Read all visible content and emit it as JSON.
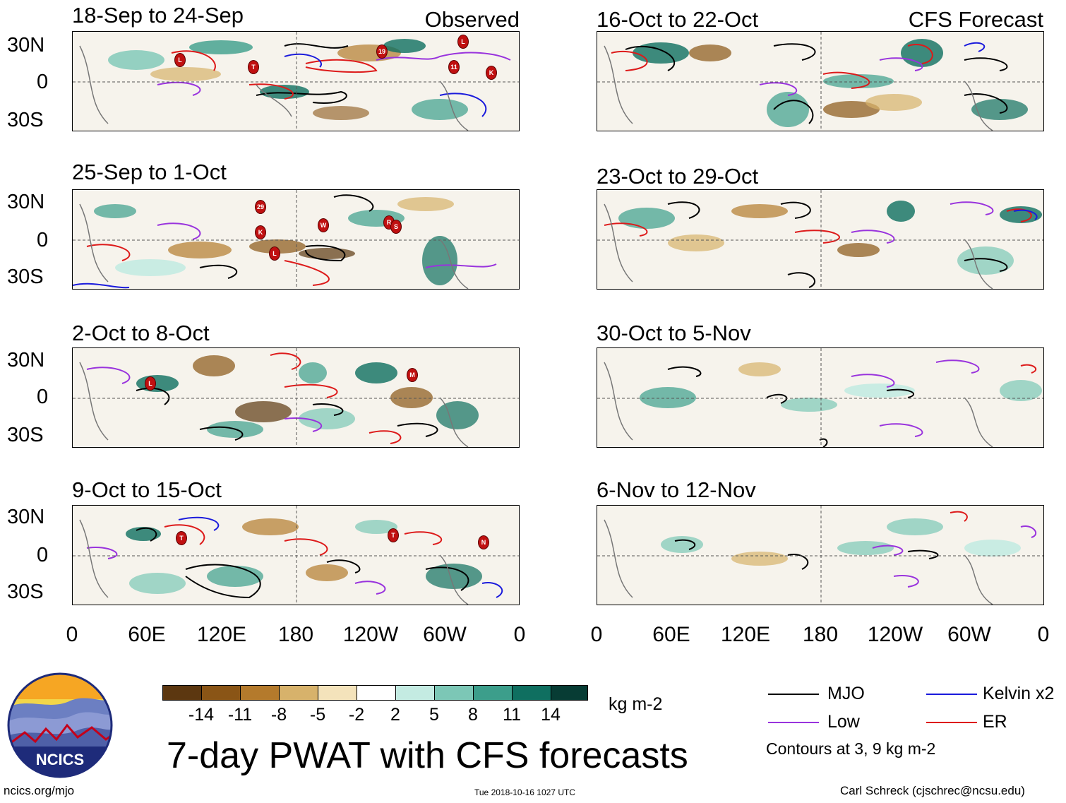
{
  "left_column_header": "Observed",
  "right_column_header": "CFS Forecast",
  "left_panels": [
    {
      "period": "18-Sep to 24-Sep",
      "storms": [
        "L",
        "T",
        "19",
        "L",
        "11",
        "K"
      ]
    },
    {
      "period": "25-Sep to 1-Oct",
      "storms": [
        "29",
        "K",
        "L",
        "W",
        "R",
        "S"
      ]
    },
    {
      "period": "2-Oct to 8-Oct",
      "storms": [
        "L",
        "M"
      ]
    },
    {
      "period": "9-Oct to 15-Oct",
      "storms": [
        "T",
        "T",
        "N"
      ]
    }
  ],
  "right_panels": [
    {
      "period": "16-Oct to 22-Oct"
    },
    {
      "period": "23-Oct to 29-Oct"
    },
    {
      "period": "30-Oct to 5-Nov"
    },
    {
      "period": "6-Nov to 12-Nov"
    }
  ],
  "lat_labels": [
    "30N",
    "0",
    "30S"
  ],
  "lon_labels": [
    "0",
    "60E",
    "120E",
    "180",
    "120W",
    "60W",
    "0"
  ],
  "colorbar": {
    "unit": "kg m-2",
    "ticks": [
      "-14",
      "-11",
      "-8",
      "-5",
      "-2",
      "2",
      "5",
      "8",
      "11",
      "14"
    ],
    "colors": [
      "#5c3710",
      "#8a5516",
      "#b47a2c",
      "#d7b26b",
      "#f4e3bb",
      "#ffffff",
      "#c4ebe2",
      "#7cc7b6",
      "#3c9e8b",
      "#0f6f60",
      "#073c34"
    ]
  },
  "legend": {
    "mjo": {
      "label": "MJO",
      "color": "#000000"
    },
    "kelvin": {
      "label": "Kelvin x2",
      "color": "#1a1adc"
    },
    "low": {
      "label": "Low",
      "color": "#9933dd"
    },
    "er": {
      "label": "ER",
      "color": "#dd1a1a"
    },
    "contours_note": "Contours at 3, 9 kg m-2"
  },
  "logo_text": "NCICS",
  "main_title": "7-day PWAT with CFS forecasts",
  "footer_left": "ncics.org/mjo",
  "footer_center": "Tue 2018-10-16 1027 UTC",
  "footer_right": "Carl Schreck (cjschrec@ncsu.edu)"
}
